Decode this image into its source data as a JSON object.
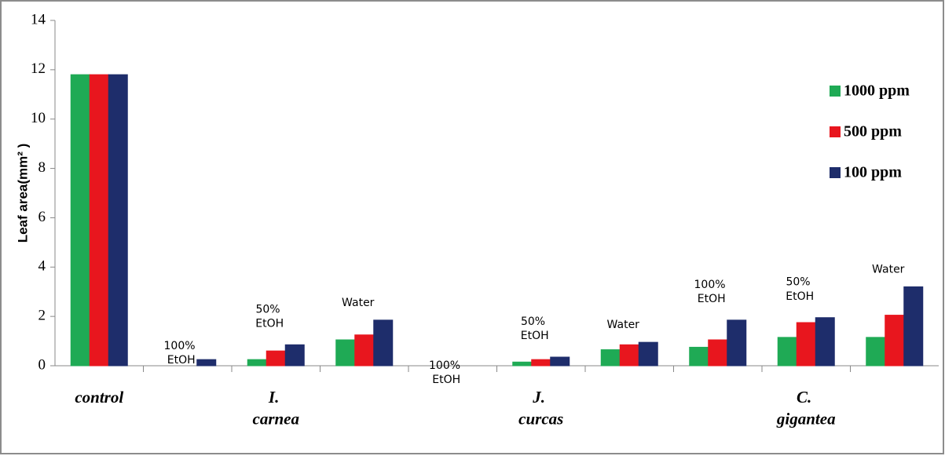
{
  "chart_data": {
    "type": "bar",
    "y_label": "Leaf area(mm² )",
    "categories": [
      null,
      "100% EtOH",
      "50% EtOH",
      "Water",
      "100% EtOH",
      "50% EtOH",
      "Water",
      "100% EtOH",
      "50% EtOH",
      "Water"
    ],
    "group_labels": [
      "control",
      "I. carnea",
      "J. curcas",
      "C. gigantea"
    ],
    "series": [
      {
        "name": "1000 ppm",
        "color": "#1faa55",
        "values": [
          11.8,
          0,
          0.25,
          1.05,
          0,
          0.15,
          0.65,
          0.75,
          1.15,
          1.15
        ]
      },
      {
        "name": "500 ppm",
        "color": "#e8161e",
        "values": [
          11.8,
          0,
          0.6,
          1.25,
          0,
          0.25,
          0.85,
          1.05,
          1.75,
          2.05
        ]
      },
      {
        "name": "100 ppm",
        "color": "#1e2d6b",
        "values": [
          11.8,
          0.25,
          0.85,
          1.85,
          0,
          0.35,
          0.95,
          1.85,
          1.95,
          3.2
        ]
      }
    ],
    "ylim": [
      0,
      14
    ],
    "yticks": [
      0,
      2,
      4,
      6,
      8,
      10,
      12,
      14
    ],
    "legend": "right"
  }
}
